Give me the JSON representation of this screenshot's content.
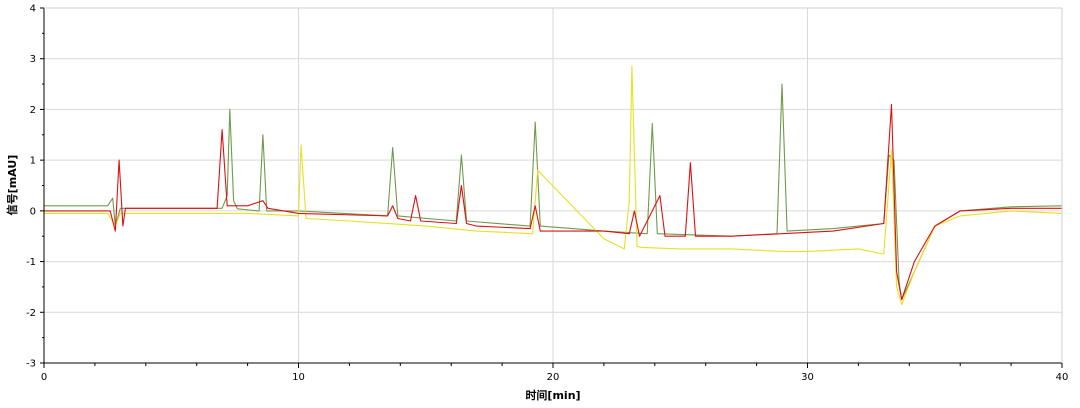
{
  "chart_data": {
    "type": "line",
    "xlabel": "时间[min]",
    "ylabel": "信号[mAU]",
    "xlim": [
      0,
      40
    ],
    "ylim": [
      -3,
      4
    ],
    "xticks": [
      0,
      10,
      20,
      30,
      40
    ],
    "yticks": [
      -3,
      -2,
      -1,
      0,
      1,
      2,
      3,
      4
    ],
    "grid": true,
    "legend": "none",
    "series": [
      {
        "color": "#6f9a4f",
        "x": [
          0,
          2.5,
          2.7,
          2.8,
          3.0,
          5,
          7.0,
          7.2,
          7.3,
          7.45,
          7.6,
          8.45,
          8.6,
          8.75,
          10,
          13.5,
          13.7,
          13.9,
          16.2,
          16.4,
          16.6,
          19.1,
          19.3,
          19.5,
          22,
          23.7,
          23.9,
          24.1,
          27,
          28.8,
          29.0,
          29.2,
          31,
          33.0,
          33.2,
          33.4,
          33.6,
          33.7,
          34.2,
          35,
          36,
          38,
          40
        ],
        "y": [
          0.1,
          0.1,
          0.25,
          -0.3,
          0.05,
          0.05,
          0.05,
          0.3,
          2.0,
          0.2,
          0.04,
          0.0,
          1.5,
          0.0,
          0.0,
          -0.1,
          1.25,
          -0.1,
          -0.2,
          1.1,
          -0.2,
          -0.3,
          1.75,
          -0.3,
          -0.4,
          -0.45,
          1.72,
          -0.45,
          -0.5,
          -0.45,
          2.5,
          -0.4,
          -0.35,
          -0.25,
          1.1,
          1.0,
          -1.4,
          -1.75,
          -1.2,
          -0.3,
          0.0,
          0.08,
          0.1
        ]
      },
      {
        "color": "#e8e020",
        "x": [
          0,
          2.5,
          2.8,
          3.0,
          3.2,
          5,
          8,
          10,
          10.1,
          10.3,
          12,
          15,
          17,
          19.2,
          19.4,
          22,
          22.8,
          23.0,
          23.1,
          23.3,
          23.5,
          25,
          27,
          29,
          30,
          32,
          33.0,
          33.3,
          33.5,
          33.7,
          34.2,
          35,
          36,
          38,
          40
        ],
        "y": [
          -0.05,
          -0.05,
          -0.3,
          -0.05,
          -0.05,
          -0.05,
          -0.05,
          -0.1,
          1.3,
          -0.15,
          -0.2,
          -0.3,
          -0.4,
          -0.45,
          0.8,
          -0.55,
          -0.75,
          0.2,
          2.85,
          -0.7,
          -0.72,
          -0.75,
          -0.75,
          -0.8,
          -0.8,
          -0.75,
          -0.85,
          1.2,
          -1.5,
          -1.85,
          -1.2,
          -0.3,
          -0.1,
          0.0,
          -0.05
        ]
      },
      {
        "color": "#dd1111",
        "x": [
          0,
          2.6,
          2.8,
          2.95,
          3.1,
          3.2,
          5,
          6.8,
          7.0,
          7.2,
          8.0,
          8.6,
          8.8,
          10,
          13.5,
          13.7,
          13.9,
          14.4,
          14.6,
          14.8,
          16.2,
          16.4,
          16.6,
          17,
          19.1,
          19.3,
          19.5,
          22,
          23.0,
          23.2,
          23.4,
          23.9,
          24.2,
          24.4,
          25.2,
          25.4,
          25.6,
          27,
          29,
          31,
          33.0,
          33.3,
          33.5,
          33.7,
          34.2,
          35,
          36,
          38,
          40
        ],
        "y": [
          0.0,
          0.0,
          -0.4,
          1.0,
          -0.3,
          0.05,
          0.05,
          0.05,
          1.6,
          0.1,
          0.1,
          0.2,
          0.05,
          -0.05,
          -0.1,
          0.1,
          -0.15,
          -0.2,
          0.3,
          -0.2,
          -0.25,
          0.5,
          -0.25,
          -0.3,
          -0.35,
          0.1,
          -0.4,
          -0.4,
          -0.45,
          0.0,
          -0.5,
          0.0,
          0.3,
          -0.5,
          -0.5,
          0.95,
          -0.5,
          -0.5,
          -0.45,
          -0.4,
          -0.25,
          2.1,
          -1.2,
          -1.75,
          -1.0,
          -0.3,
          0.0,
          0.05,
          0.05
        ]
      }
    ]
  }
}
